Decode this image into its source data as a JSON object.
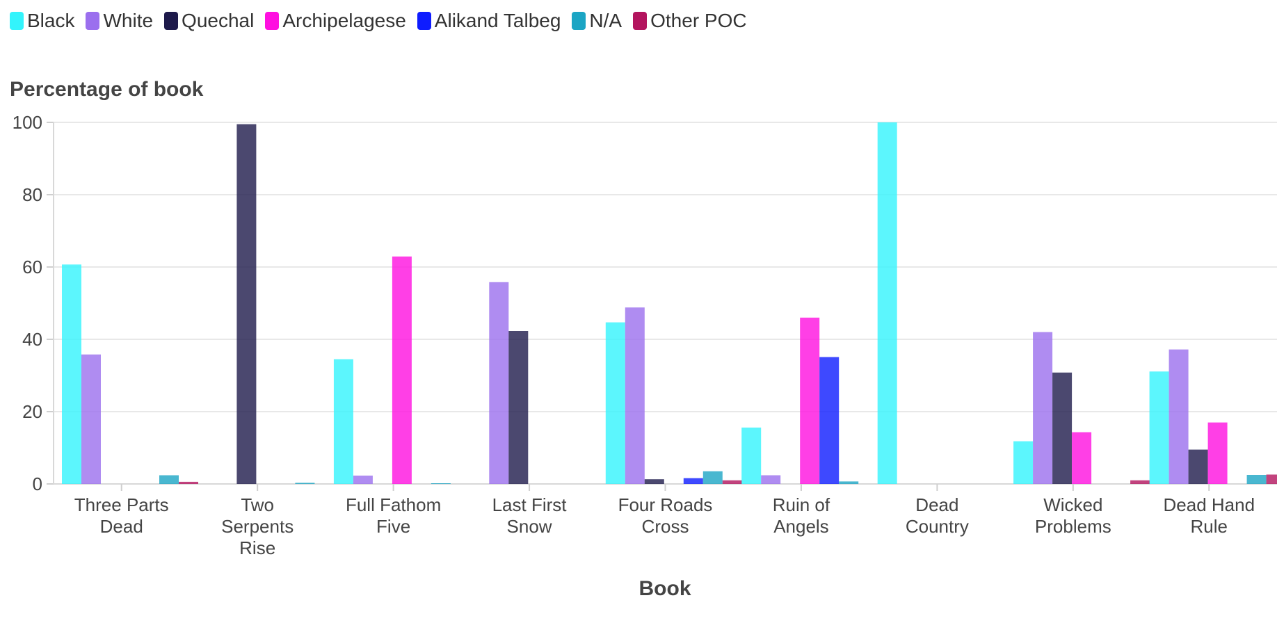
{
  "chart_data": {
    "type": "bar",
    "title": "",
    "ylabel": "Percentage of book",
    "xlabel": "Book",
    "ylim": [
      0,
      100
    ],
    "yticks": [
      0,
      20,
      40,
      60,
      80,
      100
    ],
    "grid": true,
    "legend_position": "top-left",
    "categories": [
      [
        "Three Parts",
        "Dead"
      ],
      [
        "Two",
        "Serpents",
        "Rise"
      ],
      [
        "Full Fathom",
        "Five"
      ],
      [
        "Last First",
        "Snow"
      ],
      [
        "Four Roads",
        "Cross"
      ],
      [
        "Ruin of",
        "Angels"
      ],
      [
        "Dead",
        "Country"
      ],
      [
        "Wicked",
        "Problems"
      ],
      [
        "Dead Hand",
        "Rule"
      ]
    ],
    "series": [
      {
        "name": "Black",
        "color": "#33F4FC",
        "values": [
          60.7,
          0,
          34.5,
          0,
          44.7,
          15.6,
          100,
          11.8,
          31.1
        ]
      },
      {
        "name": "White",
        "color": "#9B6FEE",
        "values": [
          35.8,
          0,
          2.3,
          55.8,
          48.8,
          2.4,
          0,
          42.0,
          37.2
        ]
      },
      {
        "name": "Quechal",
        "color": "#1E1A4B",
        "values": [
          0,
          99.5,
          0,
          42.3,
          1.3,
          0,
          0,
          30.8,
          9.5
        ]
      },
      {
        "name": "Archipelagese",
        "color": "#FF0FE0",
        "values": [
          0,
          0,
          62.9,
          0,
          0,
          46.0,
          0,
          14.3,
          17.0
        ]
      },
      {
        "name": "Alikand Talbeg",
        "color": "#0E1CFF",
        "values": [
          0,
          0,
          0,
          0,
          1.6,
          35.1,
          0,
          0,
          0
        ]
      },
      {
        "name": "N/A",
        "color": "#1BA5C4",
        "values": [
          2.4,
          0.3,
          0.2,
          0,
          3.5,
          0.7,
          0,
          0,
          2.5
        ]
      },
      {
        "name": "Other POC",
        "color": "#B3145E",
        "values": [
          0.6,
          0,
          0,
          0,
          1.0,
          0,
          0,
          1.0,
          2.6
        ]
      }
    ]
  }
}
